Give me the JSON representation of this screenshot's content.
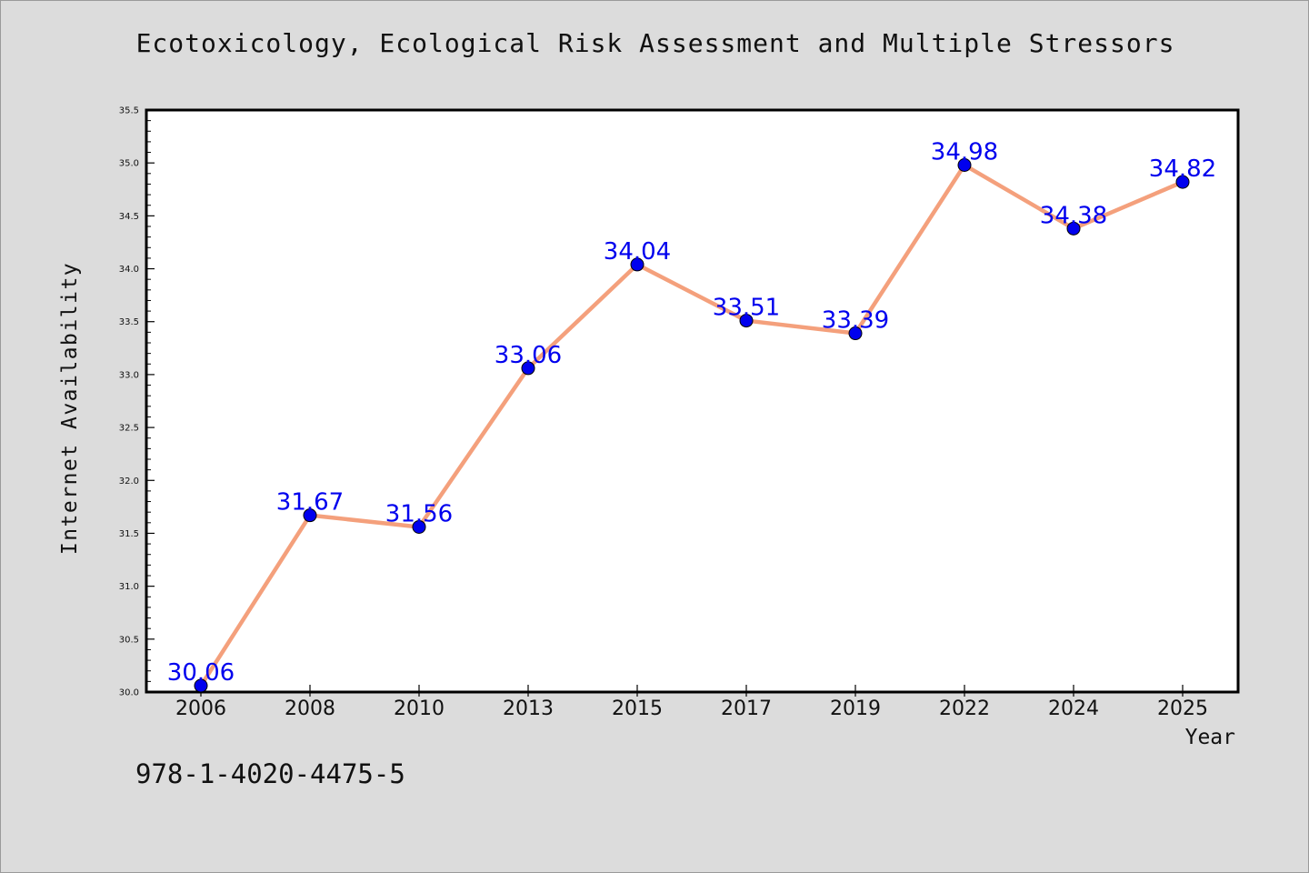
{
  "chart_data": {
    "type": "line",
    "title": "Ecotoxicology, Ecological Risk Assessment and Multiple Stressors",
    "xlabel": "Year",
    "ylabel": "Internet Availability",
    "categories": [
      "2006",
      "2008",
      "2010",
      "2013",
      "2015",
      "2017",
      "2019",
      "2022",
      "2024",
      "2025"
    ],
    "series": [
      {
        "values": [
          30.06,
          31.67,
          31.56,
          33.06,
          34.04,
          33.51,
          33.39,
          34.98,
          34.38,
          34.82
        ],
        "line_color": "#f4a07c",
        "marker_color": "#0000ee"
      }
    ],
    "data_labels": [
      "30.06",
      "31.67",
      "31.56",
      "33.06",
      "34.04",
      "33.51",
      "33.39",
      "34.98",
      "34.38",
      "34.82"
    ],
    "ylim": [
      30.0,
      35.5
    ],
    "yticks": [
      "30.0",
      "30.5",
      "31.0",
      "31.5",
      "32.0",
      "32.5",
      "33.0",
      "33.5",
      "34.0",
      "34.5",
      "35.0",
      "35.5"
    ],
    "grid": false,
    "legend": "none"
  },
  "footer_text": "978-1-4020-4475-5",
  "colors": {
    "background": "#dcdcdc",
    "plot_area": "#ffffff",
    "data_label": "#0000ee"
  }
}
